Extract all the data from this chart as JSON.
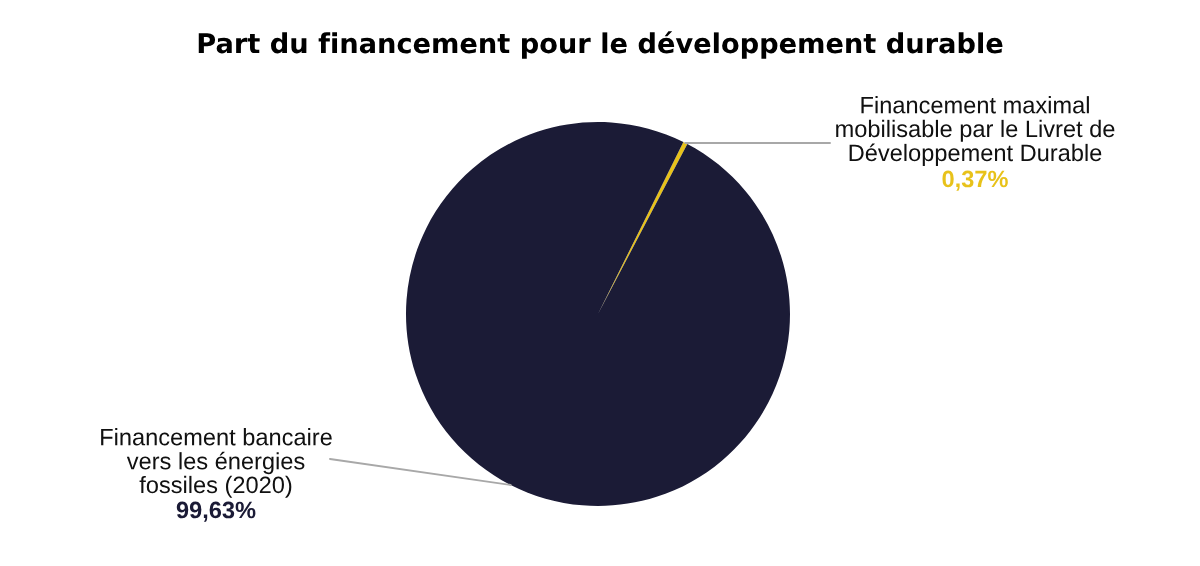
{
  "chart_data": {
    "type": "pie",
    "title": "Part du financement pour le développement durable",
    "categories": [
      "Financement maximal\nmobilisable par le Livret de\nDéveloppement Durable",
      "Financement bancaire\nvers les énergies\nfossiles (2020)"
    ],
    "values": [
      0.37,
      99.63
    ],
    "colors": [
      "#e8c21a",
      "#1b1b36"
    ],
    "value_labels": [
      "0,37%",
      "99,63%"
    ]
  }
}
